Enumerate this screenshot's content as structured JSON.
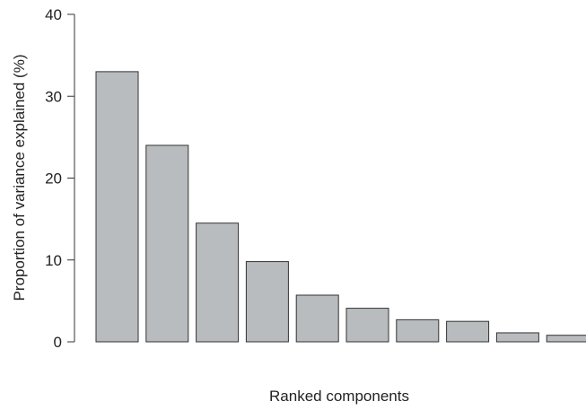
{
  "chart_data": {
    "type": "bar",
    "categories": [
      "",
      "",
      "",
      "",
      "",
      "",
      "",
      "",
      "",
      ""
    ],
    "values": [
      33,
      24,
      14.5,
      9.8,
      5.7,
      4.1,
      2.7,
      2.5,
      1.1,
      0.8
    ],
    "xlabel": "Ranked components",
    "ylabel": "Proportion of variance explained (%)",
    "ylim": [
      0,
      40
    ],
    "yticks": [
      0,
      10,
      20,
      30,
      40
    ],
    "grid": false,
    "bar_color": "#b8bcbe",
    "edge_color": "#333333"
  }
}
